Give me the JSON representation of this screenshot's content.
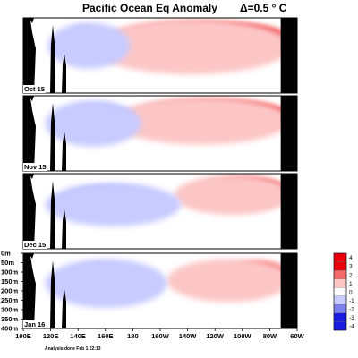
{
  "chart_data": {
    "type": "heatmap",
    "title": "Pacific Ocean Eq Anomaly",
    "interval_label": "Δ=0.5 ° C",
    "footer": "Analysis done Feb 1 22:13",
    "x_ticks": [
      "100E",
      "120E",
      "140E",
      "160E",
      "180",
      "160W",
      "140W",
      "120W",
      "100W",
      "80W",
      "60W"
    ],
    "x_range_deg_east": [
      100,
      300
    ],
    "depth_ticks": [
      "0m",
      "50m",
      "100m",
      "150m",
      "200m",
      "250m",
      "300m",
      "350m",
      "400m"
    ],
    "depth_range_m": [
      0,
      400
    ],
    "colorbar": {
      "levels": [
        "4",
        "3",
        "2",
        "1",
        "0",
        "-1",
        "-2",
        "-3",
        "-4"
      ],
      "colors": {
        "pos_strong": "#e8000b",
        "pos_mid": "#f56b6b",
        "pos_light": "#fcc6c6",
        "neutral": "#ffffff",
        "neg_light": "#c8cbff",
        "neg_mid": "#7b80f0",
        "neg_strong": "#1a1ae0"
      }
    },
    "panels": [
      {
        "month": "Oct 15",
        "warm": [
          {
            "lon": [
              190,
              290
            ],
            "d": [
              30,
              150
            ],
            "v": 3.5
          },
          {
            "lon": [
              165,
              293
            ],
            "d": [
              20,
              200
            ],
            "v": 2.0
          },
          {
            "lon": [
              150,
              295
            ],
            "d": [
              10,
              300
            ],
            "v": 0.8
          }
        ],
        "cold": [
          {
            "lon": [
              134,
              152
            ],
            "d": [
              50,
              160
            ],
            "v": -2.0
          },
          {
            "lon": [
              118,
              178
            ],
            "d": [
              25,
              270
            ],
            "v": -1.0
          }
        ]
      },
      {
        "month": "Nov 15",
        "warm": [
          {
            "lon": [
              198,
              292
            ],
            "d": [
              30,
              160
            ],
            "v": 3.5
          },
          {
            "lon": [
              178,
              293
            ],
            "d": [
              20,
              200
            ],
            "v": 2.0
          },
          {
            "lon": [
              165,
              295
            ],
            "d": [
              10,
              260
            ],
            "v": 0.8
          }
        ],
        "cold": [
          {
            "lon": [
              150,
              172
            ],
            "d": [
              70,
              180
            ],
            "v": -3.5
          },
          {
            "lon": [
              128,
              180
            ],
            "d": [
              50,
              220
            ],
            "v": -2.0
          },
          {
            "lon": [
              116,
              186
            ],
            "d": [
              25,
              270
            ],
            "v": -1.0
          }
        ]
      },
      {
        "month": "Dec 15",
        "warm": [
          {
            "lon": [
              240,
              292
            ],
            "d": [
              30,
              150
            ],
            "v": 3.5
          },
          {
            "lon": [
              225,
              293
            ],
            "d": [
              20,
              180
            ],
            "v": 2.0
          },
          {
            "lon": [
              210,
              295
            ],
            "d": [
              10,
              220
            ],
            "v": 0.8
          }
        ],
        "cold": [
          {
            "lon": [
              140,
              172
            ],
            "d": [
              90,
              190
            ],
            "v": -3.5
          },
          {
            "lon": [
              125,
              200
            ],
            "d": [
              70,
              230
            ],
            "v": -2.0
          },
          {
            "lon": [
              116,
              215
            ],
            "d": [
              50,
              280
            ],
            "v": -1.0
          }
        ]
      },
      {
        "month": "Jan 16",
        "warm": [
          {
            "lon": [
              252,
              292
            ],
            "d": [
              40,
              160
            ],
            "v": 2.0
          },
          {
            "lon": [
              205,
              295
            ],
            "d": [
              30,
              260
            ],
            "v": 0.8
          }
        ],
        "cold": [
          {
            "lon": [
              142,
              175
            ],
            "d": [
              80,
              200
            ],
            "v": -3.5
          },
          {
            "lon": [
              128,
              188
            ],
            "d": [
              60,
              240
            ],
            "v": -2.0
          },
          {
            "lon": [
              116,
              205
            ],
            "d": [
              30,
              290
            ],
            "v": -1.0
          }
        ]
      }
    ]
  }
}
